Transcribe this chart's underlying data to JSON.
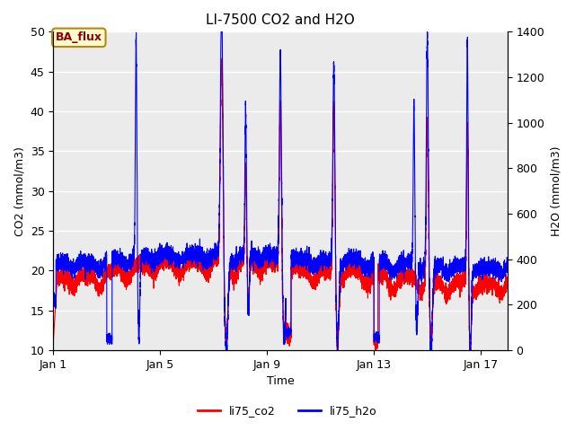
{
  "title": "LI-7500 CO2 and H2O",
  "xlabel": "Time",
  "ylabel_left": "CO2 (mmol/m3)",
  "ylabel_right": "H2O (mmol/m3)",
  "ylim_left": [
    10,
    50
  ],
  "ylim_right": [
    0,
    1400
  ],
  "yticks_left": [
    10,
    15,
    20,
    25,
    30,
    35,
    40,
    45,
    50
  ],
  "yticks_right": [
    0,
    200,
    400,
    600,
    800,
    1000,
    1200,
    1400
  ],
  "xtick_positions": [
    0,
    4,
    8,
    12,
    16
  ],
  "xtick_labels": [
    "Jan 1",
    "Jan 5",
    "Jan 9",
    "Jan 13",
    "Jan 17"
  ],
  "xlim": [
    0,
    17
  ],
  "legend_labels": [
    "li75_co2",
    "li75_h2o"
  ],
  "legend_colors": [
    "red",
    "blue"
  ],
  "annotation_text": "BA_flux",
  "annotation_bg": "#FFFACD",
  "annotation_border": "#B8860B",
  "annotation_text_color": "#8B0000",
  "co2_color": "red",
  "h2o_color": "blue",
  "background_color": "#EBEBEB",
  "grid_color": "#FFFFFF",
  "title_fontsize": 11,
  "axis_fontsize": 9,
  "tick_fontsize": 9,
  "n_points": 8000,
  "seed": 42
}
